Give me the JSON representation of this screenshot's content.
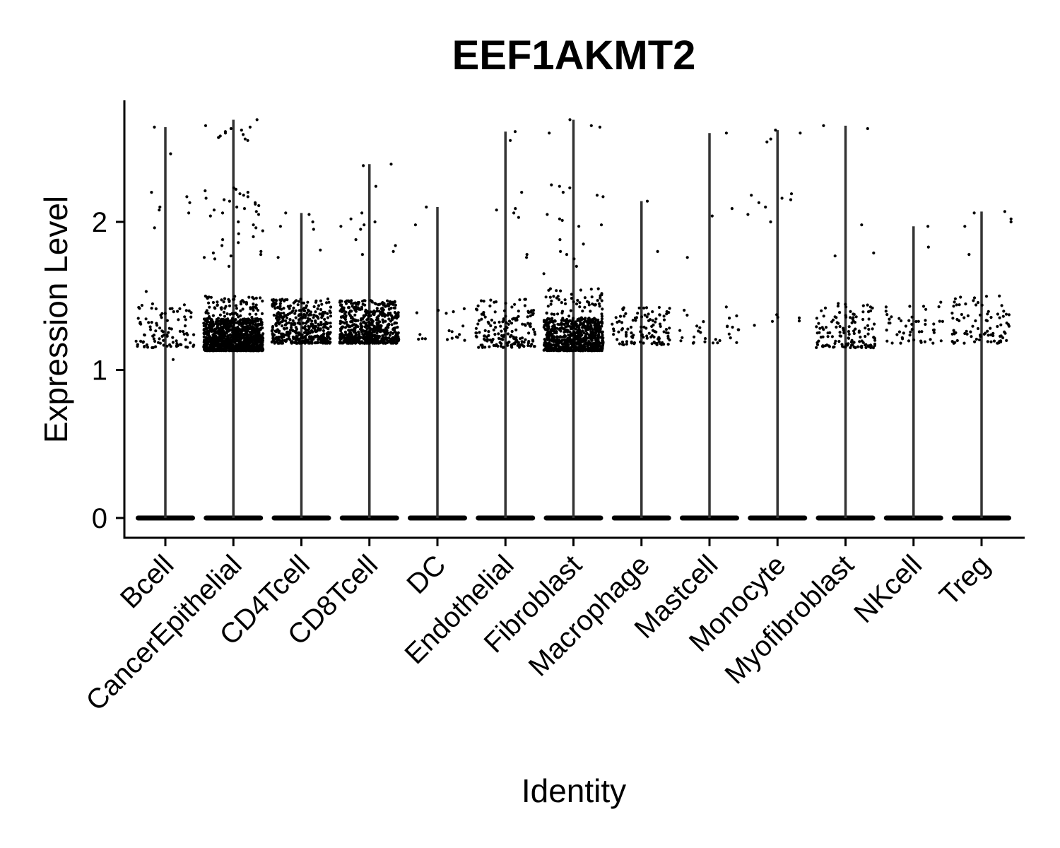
{
  "chart_data": {
    "type": "violin",
    "title": "EEF1AKMT2",
    "xlabel": "Identity",
    "ylabel": "Expression Level",
    "ylim": [
      -0.14,
      2.83
    ],
    "yticks": [
      0,
      1,
      2
    ],
    "ytick_labels": [
      "0",
      "1",
      "2"
    ],
    "categories": [
      "Bcell",
      "CancerEpithelial",
      "CD4Tcell",
      "CD8Tcell",
      "DC",
      "Endothelial",
      "Fibroblast",
      "Macrophage",
      "Mastcell",
      "Monocyte",
      "Myofibroblast",
      "NKcell",
      "Treg"
    ],
    "violin_max": [
      2.64,
      2.69,
      2.06,
      2.39,
      2.1,
      2.61,
      2.69,
      2.14,
      2.6,
      2.62,
      2.65,
      1.97,
      2.07
    ],
    "point_color": "#000000",
    "violin_color": "#333333",
    "jitter_points": [
      {
        "category": "Bcell",
        "low_cluster": {
          "count": 95,
          "min": 1.15,
          "max": 1.45
        },
        "high_values": [
          2.64,
          2.46,
          2.2,
          2.17,
          2.13,
          2.1,
          2.08,
          2.06,
          1.96,
          1.53,
          1.07
        ]
      },
      {
        "category": "CancerEpithelial",
        "low_cluster": {
          "count": 1100,
          "min": 1.13,
          "max": 1.35
        },
        "mid_cluster": {
          "count": 80,
          "min": 1.35,
          "max": 1.5
        },
        "high_values": [
          2.69,
          2.65,
          2.64,
          2.63,
          2.62,
          2.61,
          2.6,
          2.59,
          2.58,
          2.57,
          2.56,
          2.55,
          2.23,
          2.22,
          2.21,
          2.2,
          2.19,
          2.18,
          2.17,
          2.16,
          2.15,
          2.14,
          2.13,
          2.12,
          2.11,
          2.1,
          2.09,
          2.08,
          2.07,
          2.06,
          2.05,
          2.04,
          2.0,
          1.98,
          1.96,
          1.94,
          1.92,
          1.9,
          1.88,
          1.86,
          1.84,
          1.8,
          1.79,
          1.78,
          1.77,
          1.76,
          1.75,
          1.7
        ]
      },
      {
        "category": "CD4Tcell",
        "low_cluster": {
          "count": 430,
          "min": 1.18,
          "max": 1.48
        },
        "high_values": [
          2.06,
          2.05,
          2.0,
          1.97,
          1.95,
          1.81,
          1.76
        ]
      },
      {
        "category": "CD8Tcell",
        "low_cluster": {
          "count": 620,
          "min": 1.18,
          "max": 1.47
        },
        "high_values": [
          2.39,
          2.38,
          2.24,
          2.06,
          2.02,
          2.0,
          1.98,
          1.97,
          1.95,
          1.88,
          1.84,
          1.8,
          1.78
        ]
      },
      {
        "category": "DC",
        "low_cluster": {
          "count": 18,
          "min": 1.2,
          "max": 1.43
        },
        "high_values": [
          2.1,
          1.98
        ]
      },
      {
        "category": "Endothelial",
        "low_cluster": {
          "count": 170,
          "min": 1.15,
          "max": 1.48
        },
        "high_values": [
          2.61,
          2.55,
          2.2,
          2.09,
          2.08,
          2.06,
          2.03,
          1.78,
          1.76
        ]
      },
      {
        "category": "Fibroblast",
        "low_cluster": {
          "count": 700,
          "min": 1.13,
          "max": 1.35
        },
        "mid_cluster": {
          "count": 60,
          "min": 1.35,
          "max": 1.55
        },
        "high_values": [
          2.69,
          2.65,
          2.64,
          2.6,
          2.25,
          2.24,
          2.23,
          2.2,
          2.18,
          2.17,
          2.05,
          2.02,
          2.01,
          1.98,
          1.97,
          1.88,
          1.85,
          1.8,
          1.78,
          1.75,
          1.7,
          1.65
        ]
      },
      {
        "category": "Macrophage",
        "low_cluster": {
          "count": 110,
          "min": 1.17,
          "max": 1.43
        },
        "high_values": [
          2.14,
          1.8
        ]
      },
      {
        "category": "Mastcell",
        "low_cluster": {
          "count": 30,
          "min": 1.18,
          "max": 1.46
        },
        "high_values": [
          2.6,
          2.09,
          2.04,
          1.76
        ]
      },
      {
        "category": "Monocyte",
        "low_cluster": {
          "count": 6,
          "min": 1.3,
          "max": 1.47
        },
        "high_values": [
          2.62,
          2.6,
          2.56,
          2.54,
          2.19,
          2.18,
          2.16,
          2.15,
          2.13,
          2.1,
          2.05,
          2.0
        ]
      },
      {
        "category": "Myofibroblast",
        "low_cluster": {
          "count": 130,
          "min": 1.15,
          "max": 1.45
        },
        "high_values": [
          2.65,
          2.63,
          1.98,
          1.79,
          1.77
        ]
      },
      {
        "category": "NKcell",
        "low_cluster": {
          "count": 50,
          "min": 1.18,
          "max": 1.46
        },
        "high_values": [
          1.97,
          1.83
        ]
      },
      {
        "category": "Treg",
        "low_cluster": {
          "count": 85,
          "min": 1.18,
          "max": 1.5
        },
        "high_values": [
          2.07,
          2.06,
          2.02,
          2.0,
          1.97,
          1.78
        ]
      }
    ]
  }
}
